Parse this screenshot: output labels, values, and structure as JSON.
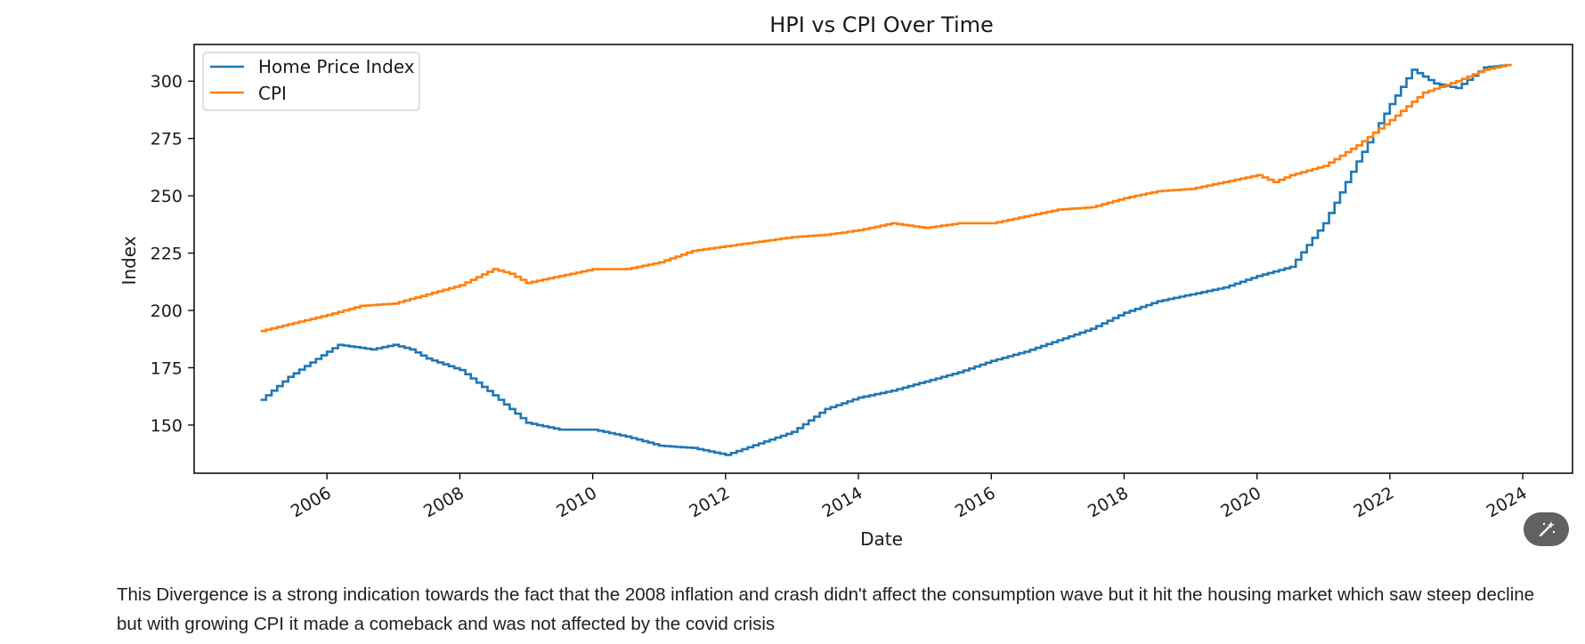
{
  "colors": {
    "hpi": "#1f77b4",
    "cpi": "#ff7f0e",
    "axis": "#000000",
    "fab": "#616161"
  },
  "icons": {
    "edit_button": "magic-wand-icon"
  },
  "caption": "This Divergence is a strong indication towards the fact that the 2008 inflation and crash didn't affect the consumption wave but it hit the housing market which saw steep decline but with growing CPI it made a comeback and was not affected by the covid crisis",
  "chart_data": {
    "type": "line",
    "title": "HPI vs CPI Over Time",
    "xlabel": "Date",
    "ylabel": "Index",
    "xlim": [
      2004.0,
      2024.75
    ],
    "ylim": [
      129,
      316
    ],
    "x_ticks": [
      "2006",
      "2008",
      "2010",
      "2012",
      "2014",
      "2016",
      "2018",
      "2020",
      "2022",
      "2024"
    ],
    "y_ticks": [
      "150",
      "175",
      "200",
      "225",
      "250",
      "275",
      "300"
    ],
    "grid": false,
    "legend_position": "upper-left",
    "drawstyle": "steps",
    "series": [
      {
        "name": "Home Price Index",
        "color": "#1f77b4",
        "points": [
          [
            "2005-01",
            161
          ],
          [
            "2005-06",
            171
          ],
          [
            "2006-01",
            182
          ],
          [
            "2006-03",
            185
          ],
          [
            "2006-06",
            184
          ],
          [
            "2006-09",
            183
          ],
          [
            "2007-01",
            185
          ],
          [
            "2007-04",
            183
          ],
          [
            "2007-07",
            179
          ],
          [
            "2008-01",
            174
          ],
          [
            "2008-07",
            163
          ],
          [
            "2009-01",
            151
          ],
          [
            "2009-07",
            148
          ],
          [
            "2010-01",
            148
          ],
          [
            "2010-07",
            145
          ],
          [
            "2011-01",
            141
          ],
          [
            "2011-07",
            140
          ],
          [
            "2012-01",
            137
          ],
          [
            "2012-07",
            142
          ],
          [
            "2013-01",
            147
          ],
          [
            "2013-07",
            157
          ],
          [
            "2014-01",
            162
          ],
          [
            "2014-07",
            165
          ],
          [
            "2015-01",
            169
          ],
          [
            "2015-07",
            173
          ],
          [
            "2016-01",
            178
          ],
          [
            "2016-07",
            182
          ],
          [
            "2017-01",
            187
          ],
          [
            "2017-07",
            192
          ],
          [
            "2018-01",
            199
          ],
          [
            "2018-07",
            204
          ],
          [
            "2019-01",
            207
          ],
          [
            "2019-07",
            210
          ],
          [
            "2020-01",
            215
          ],
          [
            "2020-07",
            219
          ],
          [
            "2021-01",
            238
          ],
          [
            "2021-07",
            265
          ],
          [
            "2022-01",
            290
          ],
          [
            "2022-05",
            305
          ],
          [
            "2022-09",
            299
          ],
          [
            "2023-01",
            297
          ],
          [
            "2023-06",
            306
          ],
          [
            "2023-10",
            307
          ]
        ]
      },
      {
        "name": "CPI",
        "color": "#ff7f0e",
        "points": [
          [
            "2005-01",
            191
          ],
          [
            "2005-06",
            194
          ],
          [
            "2006-01",
            198
          ],
          [
            "2006-07",
            202
          ],
          [
            "2007-01",
            203
          ],
          [
            "2007-07",
            207
          ],
          [
            "2008-01",
            211
          ],
          [
            "2008-07",
            218
          ],
          [
            "2008-10",
            216
          ],
          [
            "2009-01",
            212
          ],
          [
            "2009-07",
            215
          ],
          [
            "2010-01",
            218
          ],
          [
            "2010-07",
            218
          ],
          [
            "2011-01",
            221
          ],
          [
            "2011-07",
            226
          ],
          [
            "2012-01",
            228
          ],
          [
            "2012-07",
            230
          ],
          [
            "2013-01",
            232
          ],
          [
            "2013-07",
            233
          ],
          [
            "2014-01",
            235
          ],
          [
            "2014-07",
            238
          ],
          [
            "2015-01",
            236
          ],
          [
            "2015-07",
            238
          ],
          [
            "2016-01",
            238
          ],
          [
            "2016-07",
            241
          ],
          [
            "2017-01",
            244
          ],
          [
            "2017-07",
            245
          ],
          [
            "2018-01",
            249
          ],
          [
            "2018-07",
            252
          ],
          [
            "2019-01",
            253
          ],
          [
            "2019-07",
            256
          ],
          [
            "2020-01",
            259
          ],
          [
            "2020-04",
            256
          ],
          [
            "2020-07",
            259
          ],
          [
            "2021-01",
            263
          ],
          [
            "2021-07",
            272
          ],
          [
            "2022-01",
            283
          ],
          [
            "2022-07",
            295
          ],
          [
            "2023-01",
            300
          ],
          [
            "2023-06",
            305
          ],
          [
            "2023-10",
            307
          ]
        ]
      }
    ]
  }
}
